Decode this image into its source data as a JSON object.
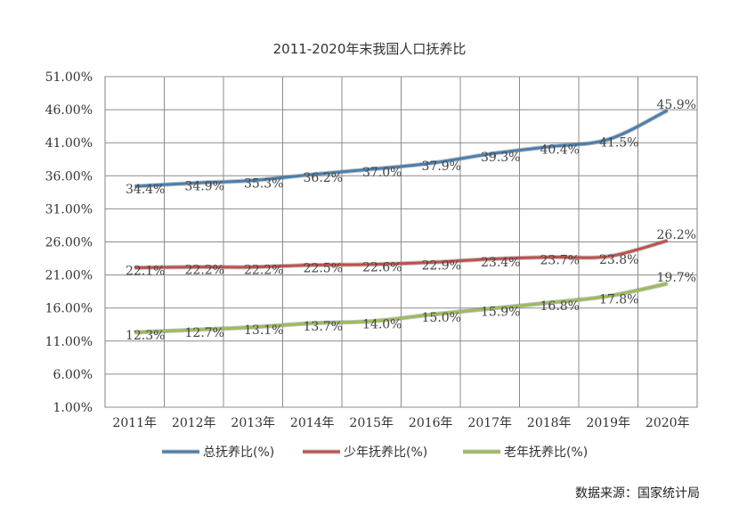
{
  "chart_data": {
    "type": "line",
    "title": "2011-2020年末我国人口抚养比",
    "source": "数据来源：国家统计局",
    "categories": [
      "2011年",
      "2012年",
      "2013年",
      "2014年",
      "2015年",
      "2016年",
      "2017年",
      "2018年",
      "2019年",
      "2020年"
    ],
    "y_ticks": [
      "1.00%",
      "6.00%",
      "11.00%",
      "16.00%",
      "21.00%",
      "26.00%",
      "31.00%",
      "36.00%",
      "41.00%",
      "46.00%",
      "51.00%"
    ],
    "ylim": [
      1,
      51
    ],
    "grid": true,
    "legend_position": "bottom",
    "series": [
      {
        "name": "总抚养比(%)",
        "color": "#4a7fae",
        "values": [
          34.4,
          34.9,
          35.3,
          36.2,
          37.0,
          37.9,
          39.3,
          40.4,
          41.5,
          45.9
        ],
        "labels": [
          "34.4%",
          "34.9%",
          "35.3%",
          "36.2%",
          "37.0%",
          "37.9%",
          "39.3%",
          "40.4%",
          "41.5%",
          "45.9%"
        ]
      },
      {
        "name": "少年抚养比(%)",
        "color": "#c0504d",
        "values": [
          22.1,
          22.2,
          22.2,
          22.5,
          22.6,
          22.9,
          23.4,
          23.7,
          23.8,
          26.2
        ],
        "labels": [
          "22.1%",
          "22.2%",
          "22.2%",
          "22.5%",
          "22.6%",
          "22.9%",
          "23.4%",
          "23.7%",
          "23.8%",
          "26.2%"
        ]
      },
      {
        "name": "老年抚养比(%)",
        "color": "#9bbb59",
        "values": [
          12.3,
          12.7,
          13.1,
          13.7,
          14.0,
          15.0,
          15.9,
          16.8,
          17.8,
          19.7
        ],
        "labels": [
          "12.3%",
          "12.7%",
          "13.1%",
          "13.7%",
          "14.0%",
          "15.0%",
          "15.9%",
          "16.8%",
          "17.8%",
          "19.7%"
        ]
      }
    ]
  }
}
